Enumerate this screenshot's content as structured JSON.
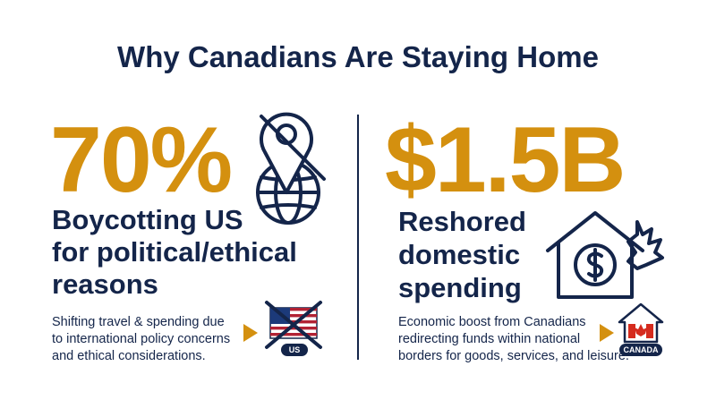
{
  "header": {
    "title": "Why Canadians Are Staying Home"
  },
  "panels": [
    {
      "stat": "70%",
      "label_lines": [
        "Boycotting US",
        "for political/ethical",
        "reasons"
      ],
      "description_lines": [
        "Shifting travel & spending due",
        "to international policy concerns",
        "and ethical considerations."
      ],
      "badge": "US"
    },
    {
      "stat": "$1.5B",
      "label_lines": [
        "Reshored",
        "domestic",
        "spending"
      ],
      "description_lines": [
        "Economic boost from Canadians",
        "redirecting funds within national",
        "borders for goods, services, and leisure."
      ],
      "badge": "CANADA"
    }
  ]
}
